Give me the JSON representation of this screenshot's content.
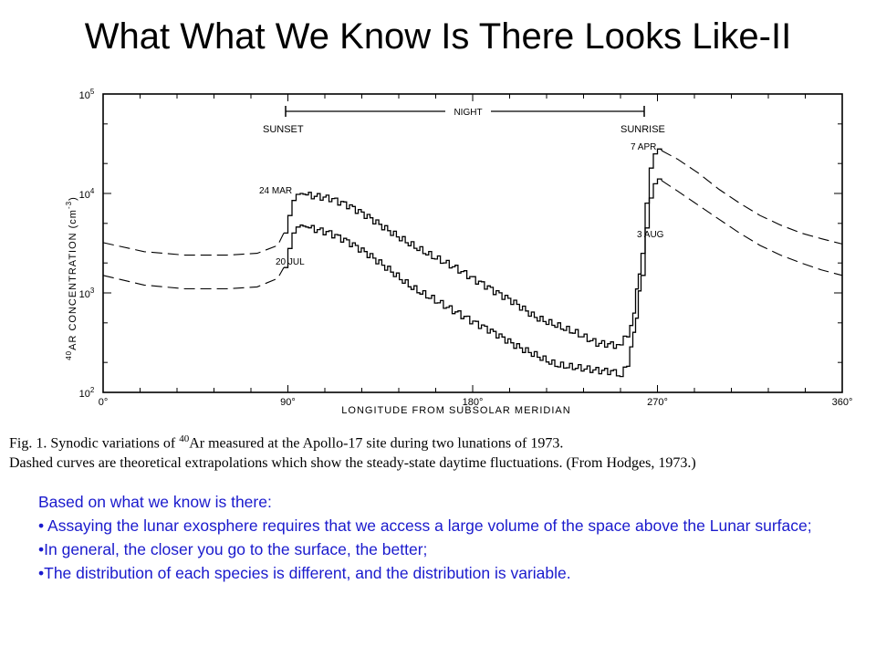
{
  "slide": {
    "title": "What What We Know Is There Looks Like-II"
  },
  "chart_data": {
    "type": "line",
    "xlabel": "LONGITUDE FROM SUBSOLAR MERIDIAN",
    "ylabel_iso": "40",
    "ylabel": "AR CONCENTRATION (cm",
    "ylabel_unit_exp": "-3",
    "ylabel_close": ")",
    "xlim": [
      0,
      360
    ],
    "y_scale": "log",
    "ylim": [
      100,
      100000
    ],
    "x_ticks": [
      "0°",
      "90°",
      "180°",
      "270°",
      "360°"
    ],
    "y_ticks": [
      {
        "base": "10",
        "exp": "2"
      },
      {
        "base": "10",
        "exp": "3"
      },
      {
        "base": "10",
        "exp": "4"
      },
      {
        "base": "10",
        "exp": "5"
      }
    ],
    "annotations": {
      "sunset": "SUNSET",
      "night": "NIGHT",
      "sunrise": "SUNRISE",
      "label_24mar": "24 MAR",
      "label_20jul": "20 JUL",
      "label_7apr": "7 APR",
      "label_3aug": "3 AUG"
    },
    "series": [
      {
        "name": "24 MAR",
        "style": "solid",
        "x": [
          88,
          90,
          92,
          94,
          96,
          100,
          110,
          120,
          130,
          140,
          150,
          160,
          170,
          180,
          190,
          200,
          210,
          220,
          230,
          240,
          250,
          255,
          258,
          262,
          264,
          266,
          268,
          270,
          272
        ],
        "y": [
          4000,
          6000,
          8500,
          9800,
          10000,
          9500,
          8500,
          7000,
          5500,
          4200,
          3200,
          2400,
          1800,
          1300,
          1000,
          800,
          600,
          500,
          400,
          300,
          280,
          350,
          700,
          2500,
          8000,
          18000,
          25000,
          28000,
          27000
        ]
      },
      {
        "name": "20 JUL",
        "style": "solid",
        "x": [
          88,
          90,
          92,
          94,
          96,
          100,
          110,
          120,
          130,
          140,
          150,
          160,
          170,
          180,
          190,
          200,
          210,
          220,
          230,
          240,
          250,
          255,
          258,
          262,
          264,
          266,
          268,
          270,
          272
        ],
        "y": [
          1800,
          2800,
          4000,
          4600,
          4800,
          4500,
          3800,
          3000,
          2300,
          1700,
          1200,
          900,
          650,
          480,
          380,
          300,
          250,
          200,
          180,
          160,
          150,
          200,
          400,
          1500,
          4500,
          9000,
          12500,
          14000,
          13500
        ]
      },
      {
        "name": "",
        "style": "dashed",
        "x": [
          0,
          20,
          40,
          60,
          75,
          85,
          88
        ],
        "y": [
          3200,
          2600,
          2400,
          2400,
          2500,
          3000,
          4000
        ]
      },
      {
        "name": "",
        "style": "dashed",
        "x": [
          0,
          20,
          40,
          60,
          75,
          85,
          88
        ],
        "y": [
          1500,
          1200,
          1100,
          1100,
          1150,
          1400,
          1800
        ]
      },
      {
        "name": "",
        "style": "dashed",
        "x": [
          272,
          280,
          290,
          300,
          310,
          320,
          330,
          340,
          350,
          360
        ],
        "y": [
          27000,
          22000,
          16000,
          11000,
          8000,
          6000,
          4800,
          4000,
          3500,
          3100
        ]
      },
      {
        "name": "",
        "style": "dashed",
        "x": [
          272,
          280,
          290,
          300,
          310,
          320,
          330,
          340,
          350,
          360
        ],
        "y": [
          13500,
          10500,
          7600,
          5500,
          4000,
          3000,
          2400,
          2000,
          1700,
          1500
        ]
      }
    ]
  },
  "caption": {
    "line1_prefix": "Fig. 1. Synodic variations of ",
    "line1_iso": "40",
    "line1_suffix": "Ar measured at the Apollo-17 site during two lunations of 1973.",
    "line2": "Dashed curves are theoretical extrapolations which show the steady-state daytime fluctuations. (From Hodges, 1973.)"
  },
  "bullets": {
    "intro": "Based on what we know is there:",
    "items": [
      "• Assaying the lunar exosphere requires that we access a large volume of the space above the Lunar surface;",
      "•In general, the closer you go to the surface, the better;",
      "•The distribution of each species is different, and the distribution is variable."
    ]
  }
}
